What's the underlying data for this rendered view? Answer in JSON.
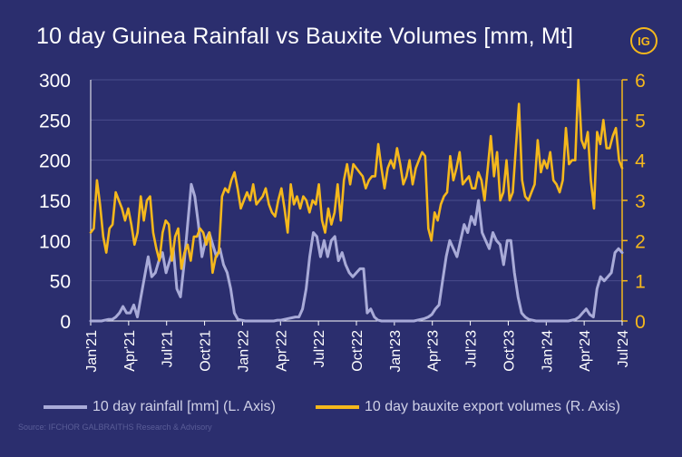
{
  "title": "10 day Guinea Rainfall vs Bauxite Volumes [mm, Mt]",
  "logo_text": "IG",
  "source": "Source: IFCHOR GALBRAITHS Research & Advisory",
  "colors": {
    "background": "#2b2e6e",
    "rainfall": "#a9abd8",
    "bauxite": "#f5b81c",
    "grid": "#4a4d8c",
    "text": "#ffffff"
  },
  "chart_data": {
    "type": "line",
    "x_tick_labels": [
      "Jan'21",
      "Apr'21",
      "Jul'21",
      "Oct'21",
      "Jan'22",
      "Apr'22",
      "Jul'22",
      "Oct'22",
      "Jan'23",
      "Apr'23",
      "Jul'23",
      "Oct'23",
      "Jan'24",
      "Apr'24",
      "Jul'24"
    ],
    "y_left": {
      "ylim": [
        0,
        300
      ],
      "ticks": [
        "0",
        "50",
        "100",
        "150",
        "200",
        "250",
        "300"
      ]
    },
    "y_right": {
      "ylim": [
        0,
        6
      ],
      "ticks": [
        "0",
        "1",
        "2",
        "3",
        "4",
        "5",
        "6"
      ]
    },
    "grid": "horizontal",
    "legend_position": "bottom",
    "series": [
      {
        "name": "10 day rainfall [mm] (L. Axis)",
        "axis": "left",
        "values": [
          0,
          0,
          0,
          0,
          1,
          2,
          2,
          5,
          10,
          18,
          10,
          10,
          20,
          5,
          30,
          55,
          80,
          55,
          60,
          75,
          85,
          60,
          75,
          90,
          40,
          30,
          70,
          120,
          170,
          155,
          120,
          80,
          100,
          110,
          95,
          80,
          90,
          70,
          60,
          40,
          10,
          2,
          1,
          0,
          0,
          0,
          0,
          0,
          0,
          0,
          0,
          0,
          1,
          1,
          2,
          3,
          4,
          5,
          5,
          15,
          40,
          80,
          110,
          105,
          80,
          100,
          80,
          100,
          105,
          75,
          85,
          70,
          60,
          55,
          60,
          65,
          65,
          10,
          15,
          5,
          1,
          0,
          0,
          0,
          0,
          0,
          0,
          0,
          0,
          0,
          0,
          1,
          2,
          3,
          5,
          8,
          15,
          20,
          50,
          80,
          100,
          90,
          80,
          100,
          120,
          110,
          130,
          120,
          150,
          110,
          100,
          90,
          110,
          100,
          95,
          70,
          100,
          100,
          60,
          30,
          10,
          5,
          2,
          1,
          0,
          0,
          0,
          0,
          0,
          0,
          0,
          0,
          0,
          0,
          1,
          2,
          5,
          10,
          15,
          8,
          5,
          40,
          55,
          50,
          55,
          60,
          85,
          90,
          85
        ]
      },
      {
        "name": "10 day bauxite export volumes (R. Axis)",
        "axis": "right",
        "values": [
          2.2,
          2.3,
          3.5,
          2.9,
          2.1,
          1.7,
          2.3,
          2.4,
          3.2,
          3.0,
          2.8,
          2.5,
          2.8,
          2.4,
          1.9,
          2.2,
          3.1,
          2.5,
          3.0,
          3.1,
          2.2,
          1.8,
          1.5,
          2.2,
          2.5,
          2.4,
          1.5,
          2.1,
          2.3,
          1.3,
          1.7,
          1.9,
          1.5,
          2.1,
          2.1,
          2.3,
          2.2,
          1.9,
          2.2,
          1.2,
          1.6,
          1.7,
          3.1,
          3.3,
          3.2,
          3.5,
          3.7,
          3.3,
          2.8,
          3.0,
          3.2,
          3.0,
          3.4,
          2.9,
          3.0,
          3.1,
          3.3,
          2.9,
          2.7,
          2.6,
          3.0,
          3.3,
          2.8,
          2.2,
          3.4,
          2.9,
          3.1,
          2.8,
          3.1,
          3.0,
          2.7,
          3.0,
          2.9,
          3.4,
          2.5,
          2.2,
          2.8,
          2.4,
          2.7,
          3.4,
          2.5,
          3.5,
          3.9,
          3.4,
          3.9,
          3.8,
          3.7,
          3.6,
          3.3,
          3.5,
          3.6,
          3.6,
          4.4,
          3.8,
          3.3,
          3.8,
          4.0,
          3.8,
          4.3,
          3.9,
          3.4,
          3.6,
          4.0,
          3.4,
          3.8,
          4.0,
          4.2,
          4.1,
          2.3,
          2.0,
          2.7,
          2.5,
          2.9,
          3.1,
          3.2,
          4.1,
          3.5,
          3.8,
          4.2,
          3.4,
          3.5,
          3.6,
          3.3,
          3.3,
          3.7,
          3.5,
          3.0,
          3.8,
          4.6,
          3.6,
          4.2,
          3.0,
          3.2,
          4.0,
          3.0,
          3.2,
          4.3,
          5.4,
          3.5,
          3.1,
          3.0,
          3.2,
          3.4,
          4.5,
          3.7,
          4.0,
          3.8,
          4.2,
          3.5,
          3.4,
          3.2,
          3.5,
          4.8,
          3.9,
          4.0,
          4.0,
          6.0,
          4.5,
          4.3,
          4.7,
          3.5,
          2.8,
          4.7,
          4.4,
          5.0,
          4.3,
          4.3,
          4.6,
          4.8,
          4.0,
          3.8
        ]
      }
    ]
  }
}
